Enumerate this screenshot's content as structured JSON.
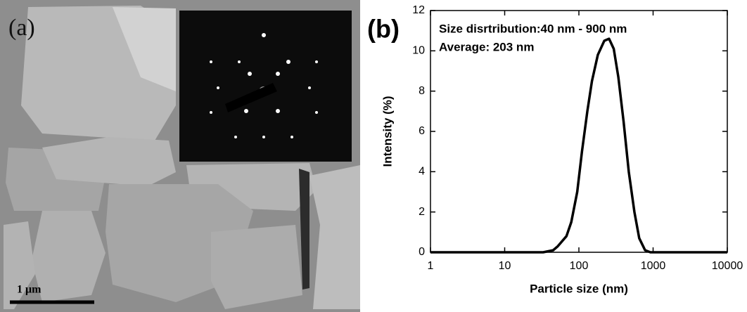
{
  "image_panel": {
    "label": "(a)",
    "scale_bar": "1 μm"
  },
  "chart_data": {
    "type": "line",
    "panel_label": "(b)",
    "annotations": [
      "Size disrtribution:40 nm - 900 nm",
      "Average: 203 nm"
    ],
    "x_label": "Particle size (nm)",
    "y_label": "Intensity (%)",
    "xscale": "log",
    "xlim": [
      1,
      10000
    ],
    "xticks": [
      1,
      10,
      100,
      1000,
      10000
    ],
    "ylim": [
      0,
      12
    ],
    "yticks": [
      0,
      2,
      4,
      6,
      8,
      10,
      12
    ],
    "series": [
      {
        "color": "#000000",
        "x": [
          1,
          10,
          33,
          45,
          52,
          68,
          79,
          95,
          110,
          130,
          150,
          180,
          220,
          255,
          295,
          340,
          400,
          470,
          560,
          650,
          780,
          920,
          10000
        ],
        "values": [
          0,
          0,
          0,
          0.1,
          0.3,
          0.8,
          1.5,
          3.0,
          5.0,
          7.0,
          8.5,
          9.8,
          10.5,
          10.6,
          10.1,
          8.7,
          6.5,
          4.0,
          2.0,
          0.7,
          0.1,
          0,
          0
        ]
      }
    ]
  }
}
